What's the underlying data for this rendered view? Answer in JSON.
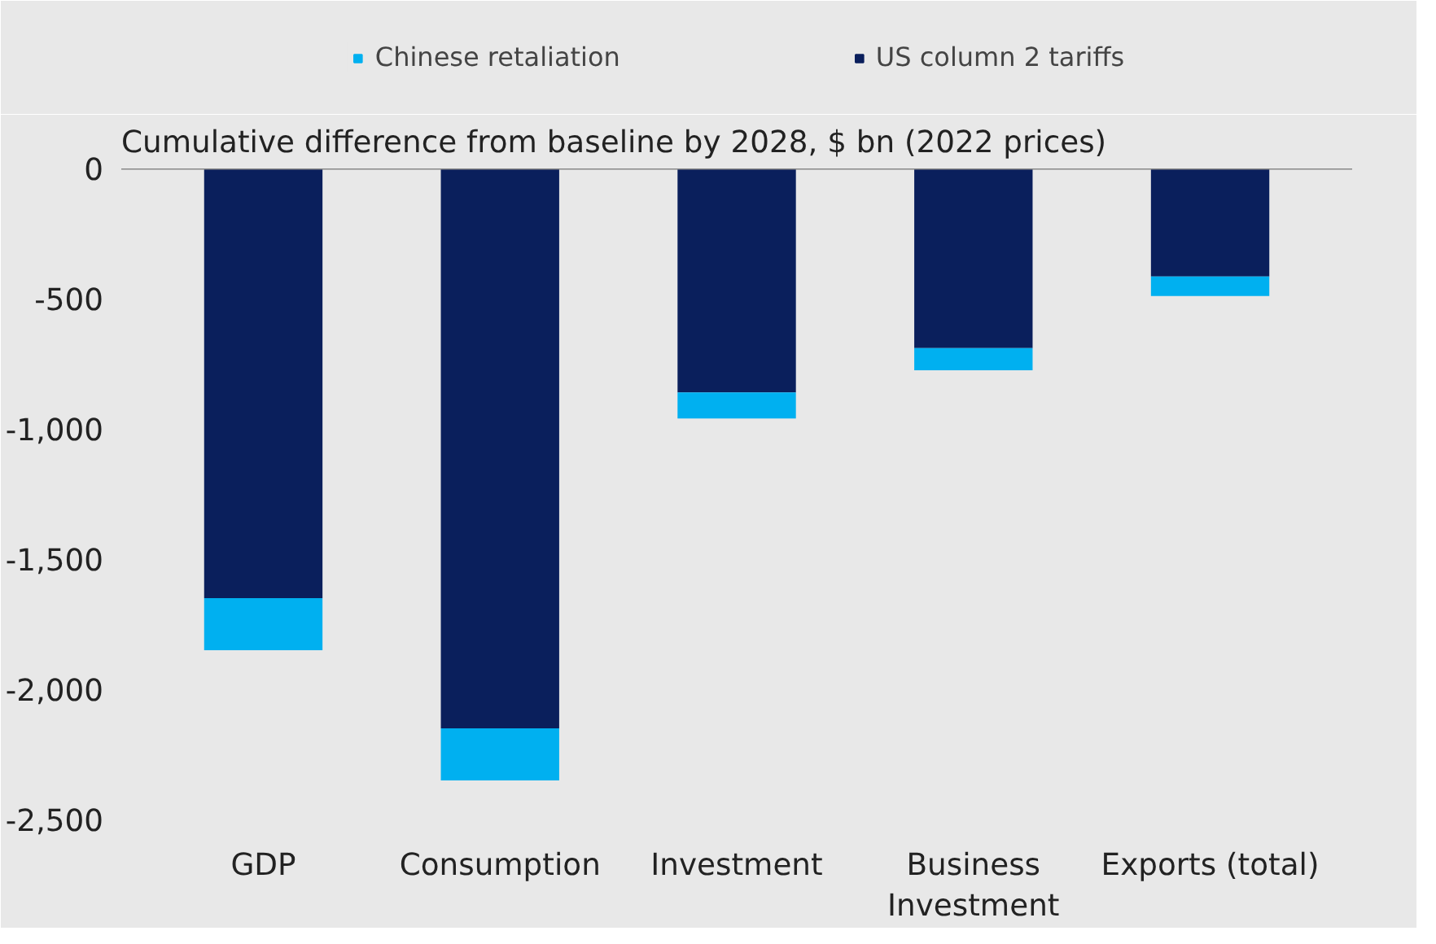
{
  "chart_data": {
    "type": "bar",
    "stacked": true,
    "subtitle": "Cumulative difference from baseline by 2028, $ bn (2022 prices)",
    "categories": [
      "GDP",
      "Consumption",
      "Investment",
      "Business Investment",
      "Exports (total)"
    ],
    "series": [
      {
        "name": "US column 2 tariffs",
        "color": "#0a1f5c",
        "values": [
          -1650,
          -2150,
          -860,
          -690,
          -415
        ]
      },
      {
        "name": "Chinese retaliation",
        "color": "#00b0f0",
        "values": [
          -200,
          -200,
          -100,
          -85,
          -75
        ]
      }
    ],
    "ylim": [
      -2500,
      0
    ],
    "yticks": [
      {
        "value": 0,
        "label": "0"
      },
      {
        "value": -500,
        "label": "-500"
      },
      {
        "value": -1000,
        "label": "-1,000"
      },
      {
        "value": -1500,
        "label": "-1,500"
      },
      {
        "value": -2000,
        "label": "-2,000"
      },
      {
        "value": -2500,
        "label": "-2,500"
      }
    ],
    "legend": "top"
  }
}
